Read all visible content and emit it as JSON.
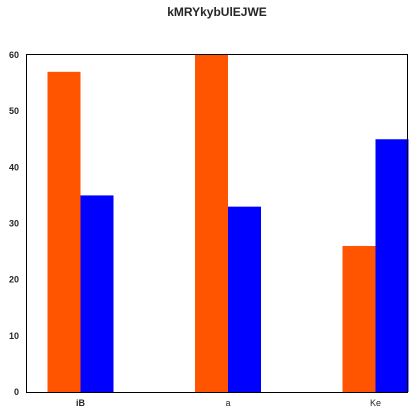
{
  "chart_data": {
    "type": "bar",
    "title": "kMRYkybUlEJWE",
    "xlabel": "",
    "ylabel": "",
    "categories": [
      "iB",
      "a",
      "Ke"
    ],
    "category_label_bold": [
      true,
      false,
      false
    ],
    "series": [
      {
        "values": [
          57,
          60,
          26
        ],
        "color": "#ff5500"
      },
      {
        "values": [
          35,
          33,
          45
        ],
        "color": "#0000ff"
      }
    ],
    "ylim": [
      0,
      60
    ],
    "yticks": [
      0,
      10,
      20,
      30,
      40,
      50,
      60
    ],
    "grid": false,
    "legend": "none",
    "background": "#ffffff",
    "axis_color": "#000000"
  }
}
